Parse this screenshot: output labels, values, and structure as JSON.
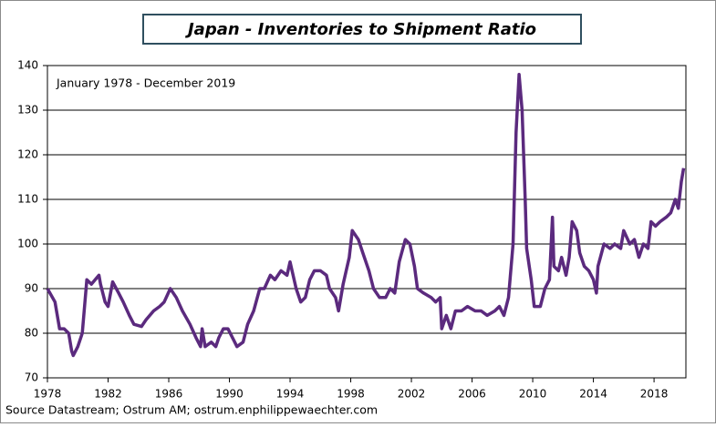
{
  "chart_data": {
    "type": "line",
    "title": "Japan - Inventories to Shipment Ratio",
    "subtitle": "January 1978 - December 2019",
    "source": "Source Datastream; Ostrum AM; ostrum.enphilippewaechter.com",
    "x": [
      1978.0,
      1978.5,
      1978.8,
      1979.1,
      1979.4,
      1979.6,
      1979.7,
      1980.0,
      1980.3,
      1980.6,
      1980.9,
      1981.4,
      1981.5,
      1981.8,
      1982.0,
      1982.3,
      1982.7,
      1983.0,
      1983.4,
      1983.7,
      1984.2,
      1984.5,
      1985.0,
      1985.4,
      1985.7,
      1986.1,
      1986.5,
      1986.9,
      1987.4,
      1987.8,
      1988.1,
      1988.2,
      1988.4,
      1988.8,
      1989.1,
      1989.3,
      1989.6,
      1989.9,
      1990.2,
      1990.5,
      1990.9,
      1991.2,
      1991.6,
      1992.0,
      1992.3,
      1992.7,
      1993.0,
      1993.4,
      1993.8,
      1994.0,
      1994.4,
      1994.7,
      1995.0,
      1995.3,
      1995.6,
      1996.0,
      1996.4,
      1996.6,
      1997.0,
      1997.2,
      1997.5,
      1997.9,
      1998.1,
      1998.5,
      1998.8,
      1999.2,
      1999.5,
      1999.9,
      2000.3,
      2000.6,
      2000.9,
      2001.2,
      2001.6,
      2001.9,
      2002.2,
      2002.4,
      2002.8,
      2003.3,
      2003.6,
      2003.9,
      2004.0,
      2004.3,
      2004.6,
      2004.9,
      2005.3,
      2005.7,
      2006.2,
      2006.6,
      2007.0,
      2007.5,
      2007.8,
      2008.1,
      2008.4,
      2008.7,
      2008.9,
      2009.1,
      2009.3,
      2009.5,
      2009.6,
      2009.9,
      2010.1,
      2010.5,
      2010.8,
      2011.1,
      2011.3,
      2011.4,
      2011.7,
      2011.9,
      2012.2,
      2012.4,
      2012.6,
      2012.9,
      2013.1,
      2013.4,
      2013.7,
      2014.0,
      2014.2,
      2014.3,
      2014.7,
      2015.1,
      2015.4,
      2015.8,
      2016.0,
      2016.4,
      2016.7,
      2017.0,
      2017.3,
      2017.6,
      2017.8,
      2018.1,
      2018.4,
      2018.8,
      2019.1,
      2019.4,
      2019.6,
      2019.8,
      2019.95
    ],
    "series": [
      {
        "name": "Inventories to Shipment Ratio",
        "color": "#5b2a7e",
        "values": [
          90,
          87,
          81,
          81,
          80,
          76,
          75,
          77,
          80,
          92,
          91,
          93,
          91,
          87,
          86,
          91.5,
          89,
          87,
          84,
          82,
          81.5,
          83,
          85,
          86,
          87,
          90,
          88,
          85,
          82,
          79,
          77,
          81,
          77,
          78,
          77,
          79,
          81,
          81,
          79,
          77,
          78,
          82,
          85,
          90,
          90,
          93,
          92,
          94,
          93,
          96,
          90,
          87,
          88,
          92,
          94,
          94,
          93,
          90,
          88,
          85,
          91,
          97,
          103,
          101,
          98,
          94,
          90,
          88,
          88,
          90,
          89,
          96,
          101,
          100,
          95,
          90,
          89,
          88,
          87,
          88,
          81,
          84,
          81,
          85,
          85,
          86,
          85,
          85,
          84,
          85,
          86,
          84,
          88,
          100,
          125,
          138,
          130,
          110,
          99,
          92,
          86,
          86,
          90,
          92,
          106,
          95,
          94,
          97,
          93,
          97,
          105,
          103,
          98,
          95,
          94,
          92,
          89,
          95,
          100,
          99,
          100,
          99,
          103,
          100,
          101,
          97,
          100,
          99,
          105,
          104,
          105,
          106,
          107,
          110,
          108,
          114,
          117
        ]
      }
    ],
    "xlim": [
      1978,
      2020.1
    ],
    "xticks": [
      1978,
      1982,
      1986,
      1990,
      1994,
      1998,
      2002,
      2006,
      2010,
      2014,
      2018
    ],
    "ylim": [
      70,
      140
    ],
    "yticks": [
      70,
      80,
      90,
      100,
      110,
      120,
      130,
      140
    ],
    "grid": true
  }
}
